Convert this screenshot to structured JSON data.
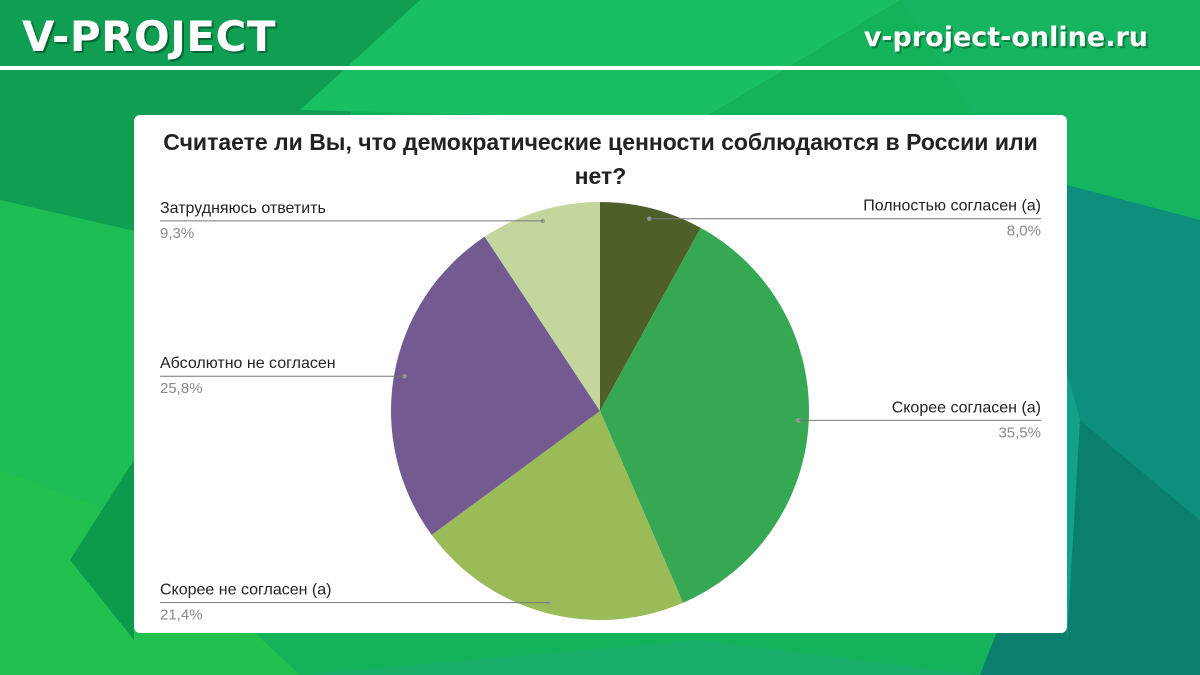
{
  "header": {
    "brand": "V-PROJECT",
    "site": "v-project-online.ru"
  },
  "colors": {
    "background": "#12b15a",
    "header_rule": "#ffffff",
    "leader_line": "#777777"
  },
  "chart_data": {
    "type": "pie",
    "title": "Считаете ли Вы, что демократические ценности соблюдаются в России или нет?",
    "start_angle_deg": 0,
    "direction": "clockwise",
    "slices": [
      {
        "label": "Полностью согласен (а)",
        "value": 8.0,
        "value_label": "8,0%",
        "color": "#4f5f2a",
        "side": "right"
      },
      {
        "label": "Скорее согласен (а)",
        "value": 35.5,
        "value_label": "35,5%",
        "color": "#36a853",
        "side": "right"
      },
      {
        "label": "Скорее не согласен (а)",
        "value": 21.4,
        "value_label": "21,4%",
        "color": "#9bbb59",
        "side": "left"
      },
      {
        "label": "Абсолютно не согласен",
        "value": 25.8,
        "value_label": "25,8%",
        "color": "#735a90",
        "side": "left"
      },
      {
        "label": "Затрудняюсь ответить",
        "value": 9.3,
        "value_label": "9,3%",
        "color": "#c4d69e",
        "side": "left"
      }
    ]
  }
}
